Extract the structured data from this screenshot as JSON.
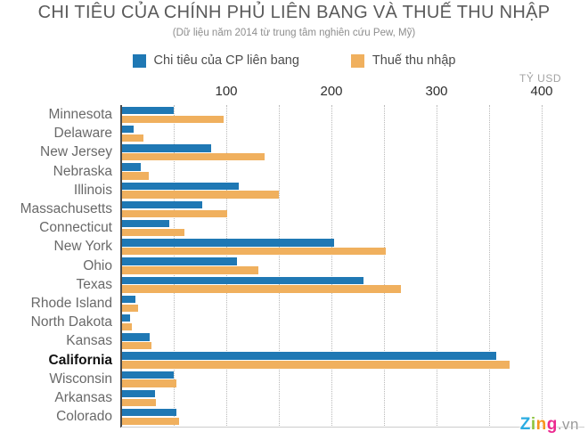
{
  "title": "CHI TIÊU CỦA CHÍNH PHỦ LIÊN BANG VÀ THUẾ THU NHẬP",
  "subtitle": "(Dữ liệu năm 2014 từ trung tâm nghiên cứu Pew, Mỹ)",
  "legend": [
    {
      "label": "Chi tiêu của CP liên bang",
      "color": "#1f78b4"
    },
    {
      "label": "Thuế thu nhập",
      "color": "#f0b05e"
    }
  ],
  "axis": {
    "unit_label": "TỶ USD",
    "ticks": [
      100,
      200,
      300,
      400
    ],
    "gridline_step": 50,
    "max": 400
  },
  "chart_data": {
    "type": "bar",
    "orientation": "horizontal",
    "title": "CHI TIÊU CỦA CHÍNH PHỦ LIÊN BANG VÀ THUẾ THU NHẬP",
    "subtitle": "(Dữ liệu năm 2014 từ trung tâm nghiên cứu Pew, Mỹ)",
    "xlabel": "TỶ USD",
    "xlim": [
      0,
      440
    ],
    "grid": true,
    "legend_position": "top",
    "highlighted_category": "California",
    "categories": [
      "Minnesota",
      "Delaware",
      "New Jersey",
      "Nebraska",
      "Illinois",
      "Massachusetts",
      "Connecticut",
      "New York",
      "Ohio",
      "Texas",
      "Rhode Island",
      "North Dakota",
      "Kansas",
      "California",
      "Wisconsin",
      "Arkansas",
      "Colorado"
    ],
    "series": [
      {
        "name": "Chi tiêu của CP liên bang",
        "color": "#1f78b4",
        "values": [
          49,
          11,
          85,
          18,
          111,
          76,
          45,
          202,
          109,
          230,
          13,
          8,
          26,
          356,
          49,
          31,
          52
        ]
      },
      {
        "name": "Thuế thu nhập",
        "color": "#f0b05e",
        "values": [
          97,
          20,
          136,
          25,
          149,
          100,
          59,
          251,
          130,
          265,
          15,
          9,
          28,
          369,
          52,
          32,
          54
        ]
      }
    ]
  },
  "watermark": {
    "letters": [
      {
        "char": "Z",
        "color": "#2bace2"
      },
      {
        "char": "i",
        "color": "#8fc43e"
      },
      {
        "char": "n",
        "color": "#f7941e"
      },
      {
        "char": "g",
        "color": "#ec2a90"
      }
    ],
    "suffix": ".vn"
  }
}
